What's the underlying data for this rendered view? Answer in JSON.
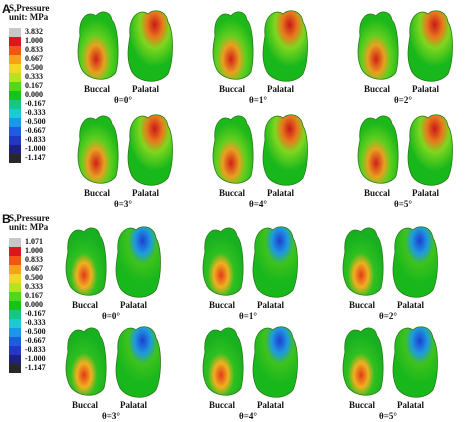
{
  "panels": [
    {
      "label": "A",
      "legend": {
        "title": "S,Pressure",
        "unit": "unit: MPa",
        "ticks": [
          "3.832",
          "1.000",
          "0.833",
          "0.667",
          "0.500",
          "0.333",
          "0.167",
          "0.000",
          "-0.167",
          "-0.333",
          "-0.500",
          "-0.667",
          "-0.833",
          "-1.000",
          "-1.147"
        ]
      },
      "cells": [
        {
          "buccal": "Buccal",
          "palatal": "Palatal",
          "theta": "θ=0°"
        },
        {
          "buccal": "Buccal",
          "palatal": "Palatal",
          "theta": "θ=1°"
        },
        {
          "buccal": "Buccal",
          "palatal": "Palatal",
          "theta": "θ=2°"
        },
        {
          "buccal": "Buccal",
          "palatal": "Palatal",
          "theta": "θ=3°"
        },
        {
          "buccal": "Buccal",
          "palatal": "Palatal",
          "theta": "θ=4°"
        },
        {
          "buccal": "Buccal",
          "palatal": "Palatal",
          "theta": "θ=5°"
        }
      ]
    },
    {
      "label": "B",
      "legend": {
        "title": "S,Pressure",
        "unit": "unit: MPa",
        "ticks": [
          "1.071",
          "1.000",
          "0.833",
          "0.667",
          "0.500",
          "0.333",
          "0.167",
          "0.000",
          "-0.167",
          "-0.333",
          "-0.500",
          "-0.667",
          "-0.833",
          "-1.000",
          "-1.147"
        ]
      },
      "cells": [
        {
          "buccal": "Buccal",
          "palatal": "Palatal",
          "theta": "θ=0°"
        },
        {
          "buccal": "Buccal",
          "palatal": "Palatal",
          "theta": "θ=1°"
        },
        {
          "buccal": "Buccal",
          "palatal": "Palatal",
          "theta": "θ=2°"
        },
        {
          "buccal": "Buccal",
          "palatal": "Palatal",
          "theta": "θ=3°"
        },
        {
          "buccal": "Buccal",
          "palatal": "Palatal",
          "theta": "θ=4°"
        },
        {
          "buccal": "Buccal",
          "palatal": "Palatal",
          "theta": "θ=5°"
        }
      ]
    }
  ],
  "legend_colors": [
    "#c8c8c8",
    "#e0141e",
    "#f0561a",
    "#f5a21c",
    "#f2d81e",
    "#b6e31e",
    "#52d61e",
    "#17c21c",
    "#18c486",
    "#1acbd4",
    "#1e96e6",
    "#1f5cdc",
    "#2437c0",
    "#202080",
    "#282828"
  ]
}
